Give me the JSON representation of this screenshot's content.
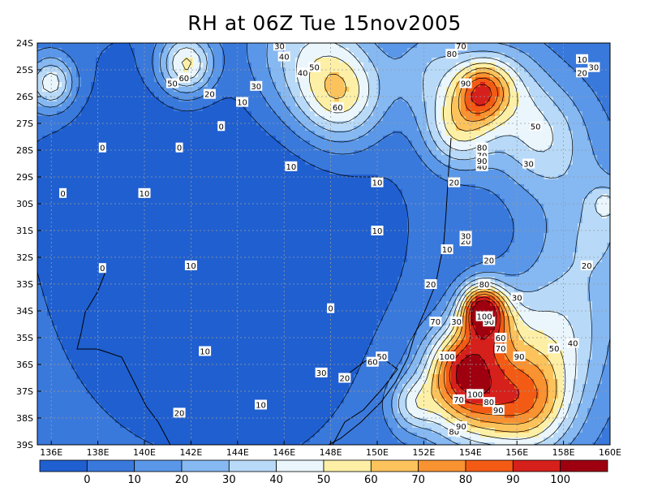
{
  "title": "RH at 06Z Tue 15nov2005",
  "colors": {
    "bins": [
      "#1f5fd0",
      "#3a79dc",
      "#5a97e8",
      "#86b8f2",
      "#b8daf8",
      "#eaf6fc",
      "#fdf0a6",
      "#fcc35c",
      "#f99231",
      "#f35b14",
      "#d6201c",
      "#9e0010"
    ],
    "grid": "#9a9a9a",
    "contour": "#000000"
  },
  "chart_data": {
    "type": "heatmap",
    "variable": "RH",
    "x_ticks": [
      "136E",
      "138E",
      "140E",
      "142E",
      "144E",
      "146E",
      "148E",
      "150E",
      "152E",
      "154E",
      "156E",
      "158E",
      "160E"
    ],
    "y_ticks": [
      "24S",
      "25S",
      "26S",
      "27S",
      "28S",
      "29S",
      "30S",
      "31S",
      "32S",
      "33S",
      "34S",
      "35S",
      "36S",
      "37S",
      "38S",
      "39S"
    ],
    "lon_range": [
      135.4,
      160
    ],
    "lat_range": [
      -39,
      -24
    ],
    "colorbar_ticks": [
      "0",
      "10",
      "20",
      "30",
      "40",
      "50",
      "60",
      "70",
      "80",
      "90",
      "100"
    ],
    "levels": [
      0,
      10,
      20,
      30,
      40,
      50,
      60,
      70,
      80,
      90,
      100
    ],
    "field": {
      "background": 5,
      "blobs": [
        {
          "lon": 143.5,
          "lat": -30.5,
          "r": 7.5,
          "a": -15
        },
        {
          "lon": 142.0,
          "lat": -34.5,
          "r": 4.0,
          "a": -6
        },
        {
          "lon": 139.0,
          "lat": -29.0,
          "r": 3.0,
          "a": -6
        },
        {
          "lon": 145.0,
          "lat": -36.5,
          "r": 2.5,
          "a": -5
        },
        {
          "lon": 154.5,
          "lat": -25.8,
          "r": 1.1,
          "a": 55
        },
        {
          "lon": 153.5,
          "lat": -27.2,
          "r": 1.5,
          "a": 45
        },
        {
          "lon": 155.5,
          "lat": -25.5,
          "r": 1.6,
          "a": 25
        },
        {
          "lon": 152.5,
          "lat": -25.0,
          "r": 1.8,
          "a": 25
        },
        {
          "lon": 154.5,
          "lat": -33.9,
          "r": 0.9,
          "a": 70
        },
        {
          "lon": 154.8,
          "lat": -34.5,
          "r": 1.3,
          "a": 40
        },
        {
          "lon": 154.0,
          "lat": -37.0,
          "r": 2.0,
          "a": 65
        },
        {
          "lon": 156.5,
          "lat": -37.5,
          "r": 1.9,
          "a": 55
        },
        {
          "lon": 153.5,
          "lat": -36.0,
          "r": 1.4,
          "a": 40
        },
        {
          "lon": 151.5,
          "lat": -37.5,
          "r": 1.0,
          "a": 30
        },
        {
          "lon": 157.5,
          "lat": -35.0,
          "r": 2.5,
          "a": 35
        },
        {
          "lon": 159.5,
          "lat": -31.0,
          "r": 2.5,
          "a": 25
        },
        {
          "lon": 141.8,
          "lat": -24.8,
          "r": 1.2,
          "a": 55
        },
        {
          "lon": 136.0,
          "lat": -25.5,
          "r": 1.0,
          "a": 45
        },
        {
          "lon": 148.5,
          "lat": -26.0,
          "r": 1.8,
          "a": 45
        },
        {
          "lon": 147.0,
          "lat": -24.5,
          "r": 2.5,
          "a": 35
        },
        {
          "lon": 157.0,
          "lat": -27.5,
          "r": 2.0,
          "a": 35
        },
        {
          "lon": 159.8,
          "lat": -30.0,
          "r": 0.6,
          "a": 20
        }
      ]
    },
    "contour_labels": [
      {
        "text": "0",
        "lon": 136.5,
        "lat": -29.6
      },
      {
        "text": "0",
        "lon": 138.2,
        "lat": -27.9
      },
      {
        "text": "0",
        "lon": 141.5,
        "lat": -27.9
      },
      {
        "text": "0",
        "lon": 143.3,
        "lat": -27.1
      },
      {
        "text": "0",
        "lon": 138.2,
        "lat": -32.4
      },
      {
        "text": "0",
        "lon": 148.0,
        "lat": -33.9
      },
      {
        "text": "10",
        "lon": 140.0,
        "lat": -29.6
      },
      {
        "text": "10",
        "lon": 146.3,
        "lat": -28.6
      },
      {
        "text": "10",
        "lon": 150.0,
        "lat": -29.2
      },
      {
        "text": "10",
        "lon": 150.0,
        "lat": -31.0
      },
      {
        "text": "10",
        "lon": 142.0,
        "lat": -32.3
      },
      {
        "text": "10",
        "lon": 142.6,
        "lat": -35.5
      },
      {
        "text": "10",
        "lon": 145.0,
        "lat": -37.5
      },
      {
        "text": "10",
        "lon": 153.0,
        "lat": -31.7
      },
      {
        "text": "10",
        "lon": 144.2,
        "lat": -26.2
      },
      {
        "text": "10",
        "lon": 158.8,
        "lat": -24.6
      },
      {
        "text": "20",
        "lon": 158.8,
        "lat": -25.1
      },
      {
        "text": "20",
        "lon": 142.8,
        "lat": -25.9
      },
      {
        "text": "20",
        "lon": 153.3,
        "lat": -29.2
      },
      {
        "text": "20",
        "lon": 153.8,
        "lat": -31.4
      },
      {
        "text": "20",
        "lon": 159.0,
        "lat": -32.3
      },
      {
        "text": "20",
        "lon": 152.3,
        "lat": -33.0
      },
      {
        "text": "20",
        "lon": 141.5,
        "lat": -37.8
      },
      {
        "text": "20",
        "lon": 154.8,
        "lat": -32.1
      },
      {
        "text": "20",
        "lon": 148.6,
        "lat": -36.5
      },
      {
        "text": "30",
        "lon": 145.8,
        "lat": -24.1
      },
      {
        "text": "30",
        "lon": 144.8,
        "lat": -25.6
      },
      {
        "text": "30",
        "lon": 159.3,
        "lat": -24.9
      },
      {
        "text": "30",
        "lon": 156.5,
        "lat": -28.5
      },
      {
        "text": "30",
        "lon": 153.8,
        "lat": -31.2
      },
      {
        "text": "30",
        "lon": 156.0,
        "lat": -33.5
      },
      {
        "text": "30",
        "lon": 147.6,
        "lat": -36.3
      },
      {
        "text": "30",
        "lon": 153.4,
        "lat": -34.4
      },
      {
        "text": "40",
        "lon": 146.0,
        "lat": -24.5
      },
      {
        "text": "40",
        "lon": 146.8,
        "lat": -25.1
      },
      {
        "text": "40",
        "lon": 154.5,
        "lat": -28.6
      },
      {
        "text": "40",
        "lon": 158.4,
        "lat": -35.2
      },
      {
        "text": "50",
        "lon": 141.2,
        "lat": -25.5
      },
      {
        "text": "50",
        "lon": 147.3,
        "lat": -24.9
      },
      {
        "text": "50",
        "lon": 156.8,
        "lat": -27.1
      },
      {
        "text": "50",
        "lon": 157.6,
        "lat": -35.4
      },
      {
        "text": "50",
        "lon": 150.2,
        "lat": -35.7
      },
      {
        "text": "60",
        "lon": 141.7,
        "lat": -25.3
      },
      {
        "text": "60",
        "lon": 148.3,
        "lat": -26.4
      },
      {
        "text": "60",
        "lon": 155.3,
        "lat": -35.0
      },
      {
        "text": "60",
        "lon": 149.8,
        "lat": -35.9
      },
      {
        "text": "70",
        "lon": 153.6,
        "lat": -24.1
      },
      {
        "text": "70",
        "lon": 154.5,
        "lat": -28.2
      },
      {
        "text": "70",
        "lon": 152.5,
        "lat": -34.4
      },
      {
        "text": "70",
        "lon": 155.3,
        "lat": -35.4
      },
      {
        "text": "70",
        "lon": 153.5,
        "lat": -37.3
      },
      {
        "text": "80",
        "lon": 153.2,
        "lat": -24.4
      },
      {
        "text": "80",
        "lon": 154.5,
        "lat": -27.9
      },
      {
        "text": "80",
        "lon": 154.6,
        "lat": -33.0
      },
      {
        "text": "80",
        "lon": 154.8,
        "lat": -37.4
      },
      {
        "text": "80",
        "lon": 153.3,
        "lat": -38.5
      },
      {
        "text": "90",
        "lon": 153.8,
        "lat": -25.5
      },
      {
        "text": "90",
        "lon": 154.5,
        "lat": -28.4
      },
      {
        "text": "90",
        "lon": 154.8,
        "lat": -34.4
      },
      {
        "text": "90",
        "lon": 156.1,
        "lat": -35.7
      },
      {
        "text": "90",
        "lon": 155.2,
        "lat": -37.7
      },
      {
        "text": "90",
        "lon": 153.6,
        "lat": -38.3
      },
      {
        "text": "100",
        "lon": 154.6,
        "lat": -34.2
      },
      {
        "text": "100",
        "lon": 153.0,
        "lat": -35.7
      },
      {
        "text": "100",
        "lon": 154.2,
        "lat": -37.1
      }
    ]
  }
}
